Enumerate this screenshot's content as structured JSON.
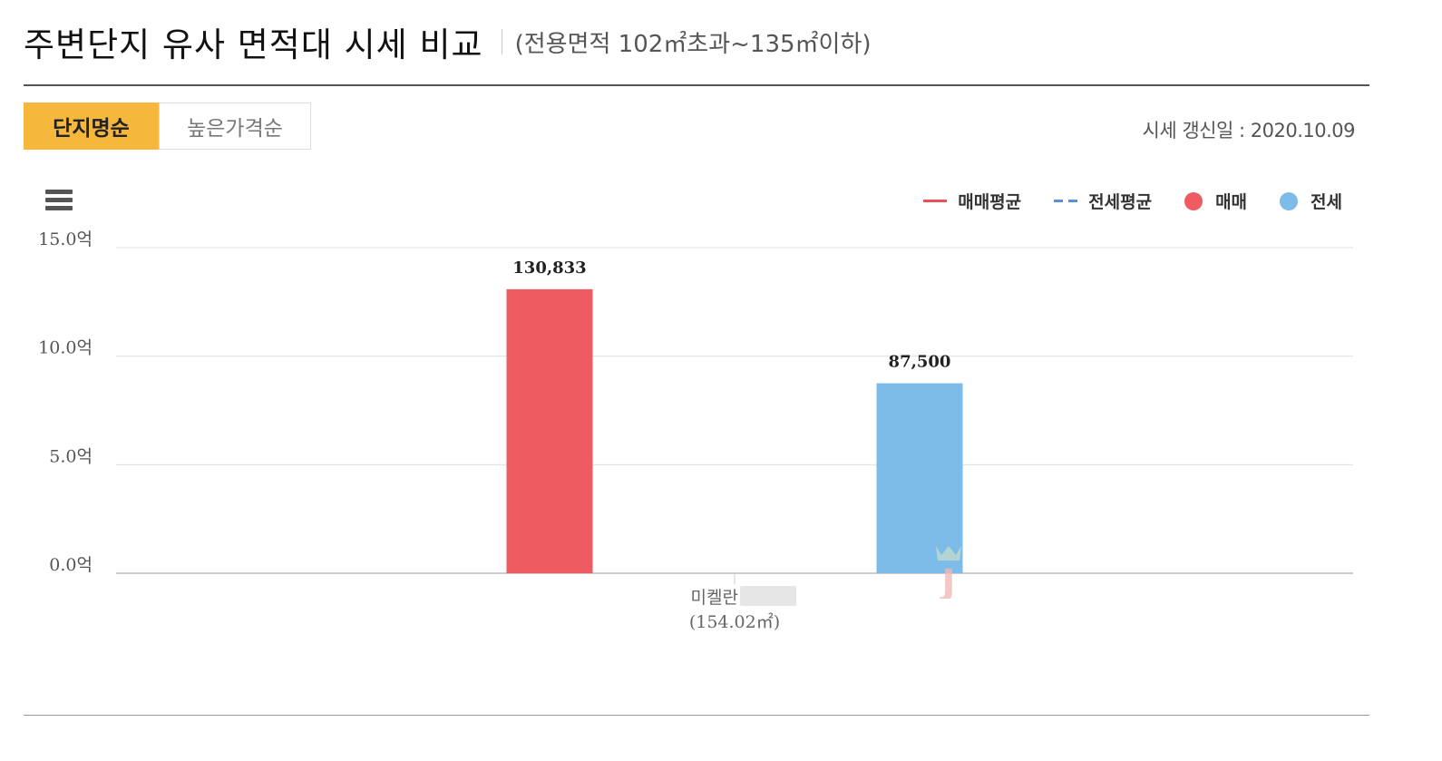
{
  "header": {
    "title": "주변단지 유사 면적대 시세 비교",
    "subtitle": "(전용면적 102㎡초과~135㎡이하)"
  },
  "tabs": [
    {
      "label": "단지명순",
      "active": true
    },
    {
      "label": "높은가격순",
      "active": false
    }
  ],
  "updated": "시세 갱신일 : 2020.10.09",
  "legend": [
    {
      "label": "매매평균",
      "style": "line",
      "color": "#e8525a"
    },
    {
      "label": "전세평균",
      "style": "dash",
      "color": "#5b8fd6"
    },
    {
      "label": "매매",
      "style": "dot",
      "color": "#ee5c62"
    },
    {
      "label": "전세",
      "style": "dot",
      "color": "#7dbbe9"
    }
  ],
  "chart_data": {
    "type": "bar",
    "y_tick_labels": [
      "0.0억",
      "5.0억",
      "10.0억",
      "15.0억"
    ],
    "y_ticks": [
      0,
      50000,
      100000,
      150000
    ],
    "ylim": [
      0,
      150000
    ],
    "grid": true,
    "legend_position": "top-right",
    "categories": [
      {
        "name": "미켈란",
        "area": "(154.02㎡)"
      }
    ],
    "series": [
      {
        "name": "매매",
        "color": "#ee5c62",
        "values": [
          130833
        ],
        "labels": [
          "130,833"
        ]
      },
      {
        "name": "전세",
        "color": "#7dbbe9",
        "values": [
          87500
        ],
        "labels": [
          "87,500"
        ]
      }
    ]
  }
}
